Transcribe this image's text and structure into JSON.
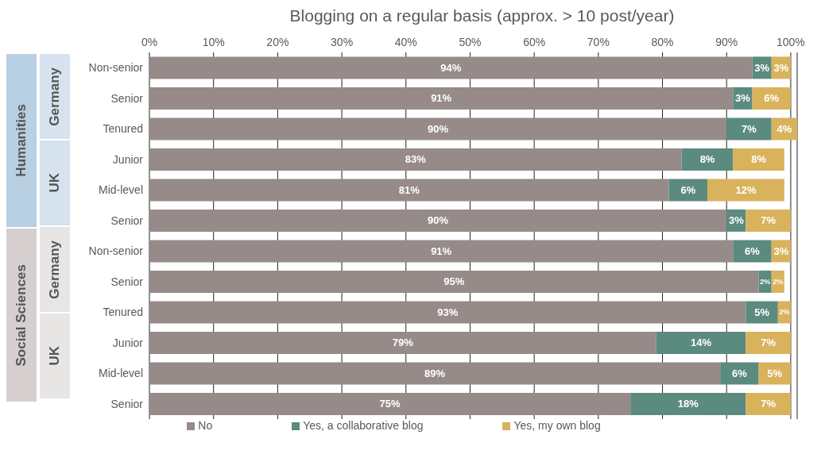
{
  "chart_data": {
    "type": "bar",
    "orientation": "horizontal",
    "stacked": true,
    "title": "Blogging on a regular basis (approx. > 10 post/year)",
    "categories": [
      "Non-senior",
      "Senior",
      "Tenured",
      "Junior",
      "Mid-level",
      "Senior",
      "Non-senior",
      "Senior",
      "Tenured",
      "Junior",
      "Mid-level",
      "Senior"
    ],
    "annotations": [
      "Humanities",
      "Germany",
      "UK",
      "Social Sciences",
      "Germany",
      "UK"
    ],
    "series": [
      {
        "name": "No",
        "color": "#968b89",
        "values": [
          94,
          91,
          90,
          83,
          81,
          90,
          91,
          95,
          93,
          79,
          89,
          75
        ],
        "value_labels": [
          "94%",
          "91%",
          "90%",
          "83%",
          "81%",
          "90%",
          "91%",
          "95%",
          "93%",
          "79%",
          "89%",
          "75%"
        ]
      },
      {
        "name": "Yes, a collaborative blog",
        "color": "#5b8a7e",
        "values": [
          3,
          3,
          7,
          8,
          6,
          3,
          6,
          2,
          5,
          14,
          6,
          18
        ],
        "value_labels": [
          "3%",
          "3%",
          "7%",
          "8%",
          "6%",
          "3%",
          "6%",
          "2%",
          "5%",
          "14%",
          "6%",
          "18%"
        ]
      },
      {
        "name": "Yes, my own blog",
        "color": "#d9b25c",
        "values": [
          3,
          6,
          4,
          8,
          12,
          7,
          3,
          2,
          2,
          7,
          5,
          7
        ],
        "value_labels": [
          "3%",
          "6%",
          "4%",
          "8%",
          "12%",
          "7%",
          "3%",
          "2%",
          "2%",
          "7%",
          "5%",
          "7%"
        ]
      }
    ],
    "xlim": [
      0,
      101
    ],
    "xticks": [
      {
        "value": 0,
        "label": "0%"
      },
      {
        "value": 10,
        "label": "10%"
      },
      {
        "value": 20,
        "label": "20%"
      },
      {
        "value": 30,
        "label": "30%"
      },
      {
        "value": 40,
        "label": "40%"
      },
      {
        "value": 50,
        "label": "50%"
      },
      {
        "value": 60,
        "label": "60%"
      },
      {
        "value": 70,
        "label": "70%"
      },
      {
        "value": 80,
        "label": "80%"
      },
      {
        "value": 90,
        "label": "90%"
      },
      {
        "value": 100,
        "label": "100%"
      }
    ],
    "grid": "x",
    "legend": "bottom"
  }
}
